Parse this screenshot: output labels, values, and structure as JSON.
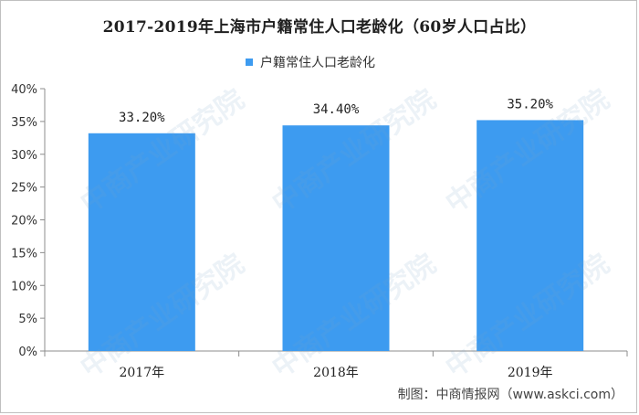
{
  "chart_data": {
    "type": "bar",
    "title": "2017-2019年上海市户籍常住人口老龄化（60岁人口占比）",
    "legend": "户籍常住人口老龄化",
    "legend_position": "top-center",
    "categories": [
      "2017年",
      "2018年",
      "2019年"
    ],
    "values": [
      33.2,
      34.4,
      35.2
    ],
    "value_labels": [
      "33.20%",
      "34.40%",
      "35.20%"
    ],
    "yticks": [
      "0%",
      "5%",
      "10%",
      "15%",
      "20%",
      "25%",
      "30%",
      "35%",
      "40%"
    ],
    "ylim": [
      0,
      40
    ],
    "grid": false,
    "bar_color": "#3d9bf0"
  },
  "watermark_text": "中商产业研究院",
  "footer": "制图：中商情报网（www.askci.com）"
}
